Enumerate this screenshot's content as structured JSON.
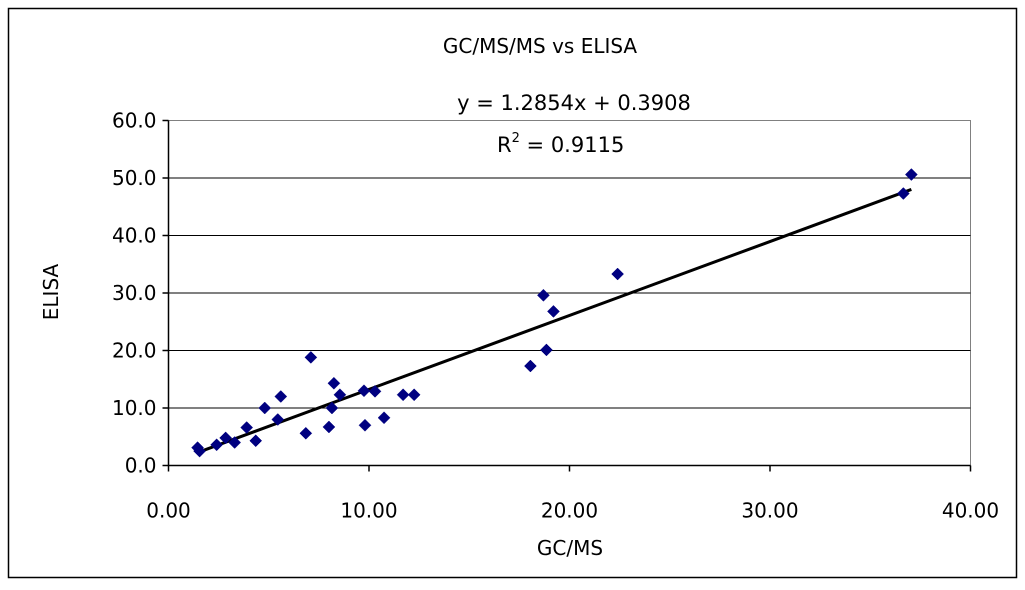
{
  "chart_data": {
    "type": "scatter",
    "title": "GC/MS/MS vs ELISA",
    "xlabel": "GC/MS",
    "ylabel": "ELISA",
    "xlim": [
      0,
      40
    ],
    "ylim": [
      0,
      60
    ],
    "x_ticks": [
      "0.00",
      "10.00",
      "20.00",
      "30.00",
      "40.00"
    ],
    "y_ticks": [
      "0.0",
      "10.0",
      "20.0",
      "30.0",
      "40.0",
      "50.0",
      "60.0"
    ],
    "x_tick_values": [
      0,
      10,
      20,
      30,
      40
    ],
    "y_tick_values": [
      0,
      10,
      20,
      30,
      40,
      50,
      60
    ],
    "grid": "horizontal",
    "series": [
      {
        "marker": "diamond",
        "color": "#000080",
        "points": [
          [
            1.45,
            3.1
          ],
          [
            1.55,
            2.5
          ],
          [
            2.4,
            3.6
          ],
          [
            2.85,
            4.8
          ],
          [
            3.3,
            4.0
          ],
          [
            3.9,
            6.6
          ],
          [
            4.35,
            4.3
          ],
          [
            4.8,
            10.0
          ],
          [
            5.45,
            8.0
          ],
          [
            5.6,
            12.0
          ],
          [
            6.85,
            5.6
          ],
          [
            7.1,
            18.8
          ],
          [
            8.0,
            6.7
          ],
          [
            8.15,
            10.0
          ],
          [
            8.25,
            14.3
          ],
          [
            8.55,
            12.3
          ],
          [
            9.75,
            13.0
          ],
          [
            9.8,
            7.0
          ],
          [
            10.3,
            12.9
          ],
          [
            10.75,
            8.3
          ],
          [
            11.7,
            12.3
          ],
          [
            12.25,
            12.3
          ],
          [
            18.05,
            17.3
          ],
          [
            18.7,
            29.6
          ],
          [
            18.85,
            20.1
          ],
          [
            19.2,
            26.8
          ],
          [
            22.4,
            33.3
          ],
          [
            36.65,
            47.3
          ],
          [
            37.05,
            50.6
          ]
        ]
      }
    ],
    "trendline": {
      "slope": 1.2854,
      "intercept": 0.3908,
      "x_range": [
        1.45,
        37.05
      ],
      "equation_text": "y = 1.2854x + 0.3908",
      "r2_prefix": "R",
      "r2_exponent": "2",
      "r2_value_text": " = 0.9115"
    },
    "legend": "none"
  }
}
